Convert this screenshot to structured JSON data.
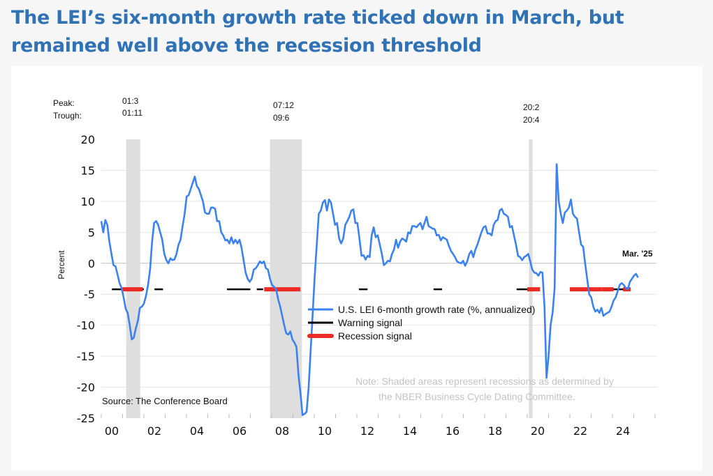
{
  "title": "The LEI’s six-month growth rate ticked down in March, but remained well above the recession threshold",
  "chart_data": {
    "type": "line",
    "title": "The LEI’s six-month growth rate ticked down in March, but remained well above the recession threshold",
    "xlabel": "",
    "ylabel": "Percent",
    "ylim": [
      -25,
      20
    ],
    "yticks": [
      20,
      15,
      10,
      5,
      0,
      -5,
      -10,
      -15,
      -20,
      -25
    ],
    "xlim": [
      2000,
      2025.25
    ],
    "xticks": [
      {
        "year": 2000,
        "label": "00"
      },
      {
        "year": 2002,
        "label": "02"
      },
      {
        "year": 2004,
        "label": "04"
      },
      {
        "year": 2006,
        "label": "06"
      },
      {
        "year": 2008,
        "label": "08"
      },
      {
        "year": 2010,
        "label": "10"
      },
      {
        "year": 2012,
        "label": "12"
      },
      {
        "year": 2014,
        "label": "14"
      },
      {
        "year": 2016,
        "label": "16"
      },
      {
        "year": 2018,
        "label": "18"
      },
      {
        "year": 2020,
        "label": "20"
      },
      {
        "year": 2022,
        "label": "22"
      },
      {
        "year": 2024,
        "label": "24"
      }
    ],
    "grid": true,
    "legend_position": "center",
    "peak_trough_labels": {
      "peak": "Peak:",
      "trough": "Trough:"
    },
    "recessions": [
      {
        "start": 2001.17,
        "end": 2001.83,
        "peak": "01:3",
        "trough": "01:11"
      },
      {
        "start": 2007.92,
        "end": 2009.42,
        "peak": "07:12",
        "trough": "09:6"
      },
      {
        "start": 2020.08,
        "end": 2020.25,
        "peak": "20:2",
        "trough": "20:4"
      }
    ],
    "threshold": -4.2,
    "warning_signal": [
      [
        2000.5,
        2001.1
      ],
      [
        2001.9,
        2002.0
      ],
      [
        2002.5,
        2002.9
      ],
      [
        2005.9,
        2007.0
      ],
      [
        2007.3,
        2007.6
      ],
      [
        2012.1,
        2012.5
      ],
      [
        2015.6,
        2015.8
      ],
      [
        2015.8,
        2016.0
      ],
      [
        2019.5,
        2020.0
      ],
      [
        2024.05,
        2024.6
      ]
    ],
    "recession_signal": [
      [
        2001.0,
        2001.95
      ],
      [
        2007.65,
        2009.35
      ],
      [
        2020.0,
        2020.6
      ],
      [
        2022.0,
        2023.5
      ],
      [
        2023.5,
        2024.05
      ],
      [
        2024.5,
        2024.85
      ]
    ],
    "series": [
      {
        "name": "U.S. LEI 6-month growth rate (%, annualized)",
        "color": "#3b82f0",
        "points": [
          [
            2000.0,
            6.8
          ],
          [
            2000.08,
            5.0
          ],
          [
            2000.17,
            7.0
          ],
          [
            2000.25,
            6.2
          ],
          [
            2000.33,
            3.5
          ],
          [
            2000.42,
            1.5
          ],
          [
            2000.5,
            -0.3
          ],
          [
            2000.58,
            -0.5
          ],
          [
            2000.67,
            -1.8
          ],
          [
            2000.75,
            -3.2
          ],
          [
            2000.83,
            -4.0
          ],
          [
            2000.92,
            -5.5
          ],
          [
            2001.0,
            -7.3
          ],
          [
            2001.08,
            -8.0
          ],
          [
            2001.17,
            -10.0
          ],
          [
            2001.25,
            -12.3
          ],
          [
            2001.33,
            -12.0
          ],
          [
            2001.42,
            -10.5
          ],
          [
            2001.5,
            -9.3
          ],
          [
            2001.58,
            -7.2
          ],
          [
            2001.67,
            -7.0
          ],
          [
            2001.75,
            -6.5
          ],
          [
            2001.83,
            -5.3
          ],
          [
            2001.92,
            -3.5
          ],
          [
            2002.0,
            -1.0
          ],
          [
            2002.08,
            3.5
          ],
          [
            2002.17,
            6.5
          ],
          [
            2002.25,
            6.8
          ],
          [
            2002.33,
            6.2
          ],
          [
            2002.42,
            5.0
          ],
          [
            2002.5,
            3.8
          ],
          [
            2002.58,
            1.5
          ],
          [
            2002.67,
            0.5
          ],
          [
            2002.75,
            0.0
          ],
          [
            2002.83,
            0.8
          ],
          [
            2002.92,
            0.5
          ],
          [
            2003.0,
            0.6
          ],
          [
            2003.08,
            1.5
          ],
          [
            2003.17,
            3.0
          ],
          [
            2003.25,
            3.8
          ],
          [
            2003.33,
            6.0
          ],
          [
            2003.42,
            8.0
          ],
          [
            2003.5,
            10.8
          ],
          [
            2003.58,
            11.0
          ],
          [
            2003.67,
            12.0
          ],
          [
            2003.75,
            13.0
          ],
          [
            2003.83,
            14.0
          ],
          [
            2003.92,
            12.5
          ],
          [
            2004.0,
            12.0
          ],
          [
            2004.08,
            11.0
          ],
          [
            2004.17,
            10.0
          ],
          [
            2004.25,
            8.2
          ],
          [
            2004.33,
            8.0
          ],
          [
            2004.42,
            8.0
          ],
          [
            2004.5,
            9.0
          ],
          [
            2004.58,
            9.0
          ],
          [
            2004.67,
            8.8
          ],
          [
            2004.75,
            6.8
          ],
          [
            2004.83,
            6.8
          ],
          [
            2004.92,
            5.0
          ],
          [
            2005.0,
            4.5
          ],
          [
            2005.08,
            3.7
          ],
          [
            2005.17,
            3.8
          ],
          [
            2005.25,
            3.2
          ],
          [
            2005.33,
            4.2
          ],
          [
            2005.42,
            3.2
          ],
          [
            2005.5,
            3.8
          ],
          [
            2005.58,
            3.2
          ],
          [
            2005.67,
            3.8
          ],
          [
            2005.75,
            2.5
          ],
          [
            2005.83,
            0.5
          ],
          [
            2005.92,
            -1.5
          ],
          [
            2006.0,
            -2.5
          ],
          [
            2006.08,
            -3.0
          ],
          [
            2006.17,
            -2.5
          ],
          [
            2006.25,
            -1.0
          ],
          [
            2006.33,
            -0.8
          ],
          [
            2006.42,
            -0.3
          ],
          [
            2006.5,
            0.3
          ],
          [
            2006.58,
            0.0
          ],
          [
            2006.67,
            0.3
          ],
          [
            2006.75,
            -0.8
          ],
          [
            2006.83,
            -1.0
          ],
          [
            2006.92,
            -2.5
          ],
          [
            2007.0,
            -3.5
          ],
          [
            2007.08,
            -3.8
          ],
          [
            2007.17,
            -4.2
          ],
          [
            2007.25,
            -5.8
          ],
          [
            2007.33,
            -7.0
          ],
          [
            2007.42,
            -8.5
          ],
          [
            2007.5,
            -10.0
          ],
          [
            2007.58,
            -11.3
          ],
          [
            2007.67,
            -11.5
          ],
          [
            2007.75,
            -11.0
          ],
          [
            2007.83,
            -12.3
          ],
          [
            2007.92,
            -12.8
          ],
          [
            2008.0,
            -13.5
          ],
          [
            2008.08,
            -18.0
          ],
          [
            2008.17,
            -21.0
          ],
          [
            2008.25,
            -24.5
          ],
          [
            2008.33,
            -24.3
          ],
          [
            2008.42,
            -24.0
          ],
          [
            2008.5,
            -20.0
          ],
          [
            2008.58,
            -14.0
          ],
          [
            2008.67,
            -8.0
          ],
          [
            2008.75,
            -2.0
          ],
          [
            2008.83,
            3.0
          ],
          [
            2008.92,
            8.0
          ],
          [
            2009.0,
            8.5
          ],
          [
            2009.08,
            9.8
          ],
          [
            2009.17,
            10.2
          ],
          [
            2009.25,
            8.5
          ],
          [
            2009.33,
            10.3
          ],
          [
            2009.42,
            9.8
          ],
          [
            2009.5,
            8.0
          ],
          [
            2009.58,
            6.2
          ],
          [
            2009.67,
            6.5
          ],
          [
            2009.75,
            4.0
          ],
          [
            2009.83,
            3.2
          ],
          [
            2009.92,
            4.0
          ],
          [
            2010.0,
            6.2
          ],
          [
            2010.08,
            6.8
          ],
          [
            2010.17,
            7.5
          ],
          [
            2010.25,
            8.5
          ],
          [
            2010.33,
            8.7
          ],
          [
            2010.42,
            6.5
          ],
          [
            2010.5,
            6.5
          ],
          [
            2010.58,
            4.0
          ],
          [
            2010.67,
            1.2
          ],
          [
            2010.75,
            1.3
          ],
          [
            2010.83,
            0.6
          ],
          [
            2010.92,
            1.2
          ],
          [
            2011.0,
            1.0
          ],
          [
            2011.08,
            4.5
          ],
          [
            2011.17,
            5.8
          ],
          [
            2011.25,
            4.2
          ],
          [
            2011.33,
            4.5
          ],
          [
            2011.42,
            3.0
          ],
          [
            2011.5,
            1.5
          ],
          [
            2011.58,
            -0.3
          ],
          [
            2011.67,
            0.0
          ],
          [
            2011.75,
            0.4
          ],
          [
            2011.83,
            0.3
          ],
          [
            2011.92,
            1.5
          ],
          [
            2012.0,
            2.2
          ],
          [
            2012.08,
            3.8
          ],
          [
            2012.17,
            2.5
          ],
          [
            2012.25,
            3.5
          ],
          [
            2012.33,
            4.0
          ],
          [
            2012.42,
            3.8
          ],
          [
            2012.5,
            3.5
          ],
          [
            2012.58,
            5.0
          ],
          [
            2012.67,
            4.8
          ],
          [
            2012.75,
            6.0
          ],
          [
            2012.83,
            6.0
          ],
          [
            2012.92,
            5.8
          ],
          [
            2013.0,
            6.2
          ],
          [
            2013.08,
            6.5
          ],
          [
            2013.17,
            5.5
          ],
          [
            2013.25,
            6.5
          ],
          [
            2013.33,
            7.5
          ],
          [
            2013.42,
            6.0
          ],
          [
            2013.5,
            5.8
          ],
          [
            2013.58,
            5.6
          ],
          [
            2013.67,
            5.5
          ],
          [
            2013.75,
            4.5
          ],
          [
            2013.83,
            4.6
          ],
          [
            2013.92,
            3.7
          ],
          [
            2014.0,
            4.2
          ],
          [
            2014.08,
            4.0
          ],
          [
            2014.17,
            3.8
          ],
          [
            2014.25,
            2.8
          ],
          [
            2014.33,
            2.0
          ],
          [
            2014.42,
            1.5
          ],
          [
            2014.5,
            1.0
          ],
          [
            2014.58,
            0.3
          ],
          [
            2014.67,
            0.1
          ],
          [
            2014.75,
            0.0
          ],
          [
            2014.83,
            0.4
          ],
          [
            2014.92,
            -0.4
          ],
          [
            2015.0,
            0.3
          ],
          [
            2015.08,
            1.5
          ],
          [
            2015.17,
            2.0
          ],
          [
            2015.25,
            1.0
          ],
          [
            2015.33,
            2.2
          ],
          [
            2015.42,
            3.0
          ],
          [
            2015.5,
            4.0
          ],
          [
            2015.58,
            5.0
          ],
          [
            2015.67,
            5.8
          ],
          [
            2015.75,
            6.0
          ],
          [
            2015.83,
            4.8
          ],
          [
            2015.92,
            4.8
          ],
          [
            2016.0,
            4.5
          ],
          [
            2016.08,
            6.2
          ],
          [
            2016.17,
            6.8
          ],
          [
            2016.25,
            7.0
          ],
          [
            2016.33,
            8.5
          ],
          [
            2016.42,
            8.8
          ],
          [
            2016.5,
            8.0
          ],
          [
            2016.58,
            7.8
          ],
          [
            2016.67,
            7.5
          ],
          [
            2016.75,
            5.8
          ],
          [
            2016.83,
            6.0
          ],
          [
            2016.92,
            4.5
          ],
          [
            2017.0,
            3.0
          ],
          [
            2017.08,
            1.2
          ],
          [
            2017.17,
            1.0
          ],
          [
            2017.25,
            0.5
          ],
          [
            2017.33,
            1.0
          ],
          [
            2017.42,
            1.2
          ],
          [
            2017.5,
            1.5
          ],
          [
            2017.58,
            0.3
          ],
          [
            2017.67,
            -1.0
          ],
          [
            2017.75,
            -1.5
          ],
          [
            2017.83,
            -1.6
          ],
          [
            2017.92,
            -2.0
          ],
          [
            2018.0,
            -1.4
          ],
          [
            2018.08,
            -1.5
          ],
          [
            2018.17,
            -7.0
          ],
          [
            2018.25,
            -18.5
          ],
          [
            2018.33,
            -15.0
          ],
          [
            2018.42,
            -10.0
          ],
          [
            2018.5,
            -8.0
          ],
          [
            2018.58,
            -4.0
          ],
          [
            2018.67,
            16.0
          ],
          [
            2018.75,
            10.0
          ],
          [
            2018.83,
            8.0
          ],
          [
            2018.92,
            6.5
          ],
          [
            2019.0,
            8.2
          ],
          [
            2019.08,
            8.5
          ],
          [
            2019.17,
            9.0
          ],
          [
            2019.25,
            10.3
          ],
          [
            2019.33,
            8.0
          ],
          [
            2019.42,
            7.5
          ],
          [
            2019.5,
            7.2
          ],
          [
            2019.58,
            5.0
          ],
          [
            2019.67,
            3.0
          ],
          [
            2019.75,
            2.7
          ],
          [
            2019.83,
            0.0
          ],
          [
            2019.92,
            -2.5
          ],
          [
            2020.0,
            -5.0
          ],
          [
            2020.08,
            -5.5
          ],
          [
            2020.17,
            -7.0
          ],
          [
            2020.25,
            -7.8
          ],
          [
            2020.33,
            -7.5
          ],
          [
            2020.42,
            -8.0
          ],
          [
            2020.5,
            -7.2
          ],
          [
            2020.58,
            -8.5
          ],
          [
            2020.67,
            -8.2
          ],
          [
            2020.75,
            -8.0
          ],
          [
            2020.83,
            -7.8
          ],
          [
            2020.92,
            -7.0
          ],
          [
            2021.0,
            -6.0
          ],
          [
            2021.08,
            -5.5
          ],
          [
            2021.17,
            -4.5
          ],
          [
            2021.25,
            -3.5
          ],
          [
            2021.33,
            -3.2
          ],
          [
            2021.42,
            -3.5
          ],
          [
            2021.5,
            -4.0
          ],
          [
            2021.58,
            -4.2
          ],
          [
            2021.67,
            -3.0
          ],
          [
            2021.75,
            -2.5
          ],
          [
            2021.83,
            -2.0
          ],
          [
            2021.92,
            -1.7
          ],
          [
            2022.0,
            -2.3
          ]
        ]
      }
    ]
  },
  "labels": {
    "source": "Source: The Conference Board",
    "note_line1": "Note: Shaded areas represent recessions as determined by",
    "note_line2": "the NBER Business Cycle Dating Committee.",
    "last_point": "Mar. '25"
  },
  "legend": [
    {
      "label": "U.S. LEI 6-month growth rate (%, annualized)",
      "color": "#3b82f0"
    },
    {
      "label": "Warning signal",
      "color": "#000000"
    },
    {
      "label": "Recession signal",
      "color": "#ee2a24"
    }
  ]
}
